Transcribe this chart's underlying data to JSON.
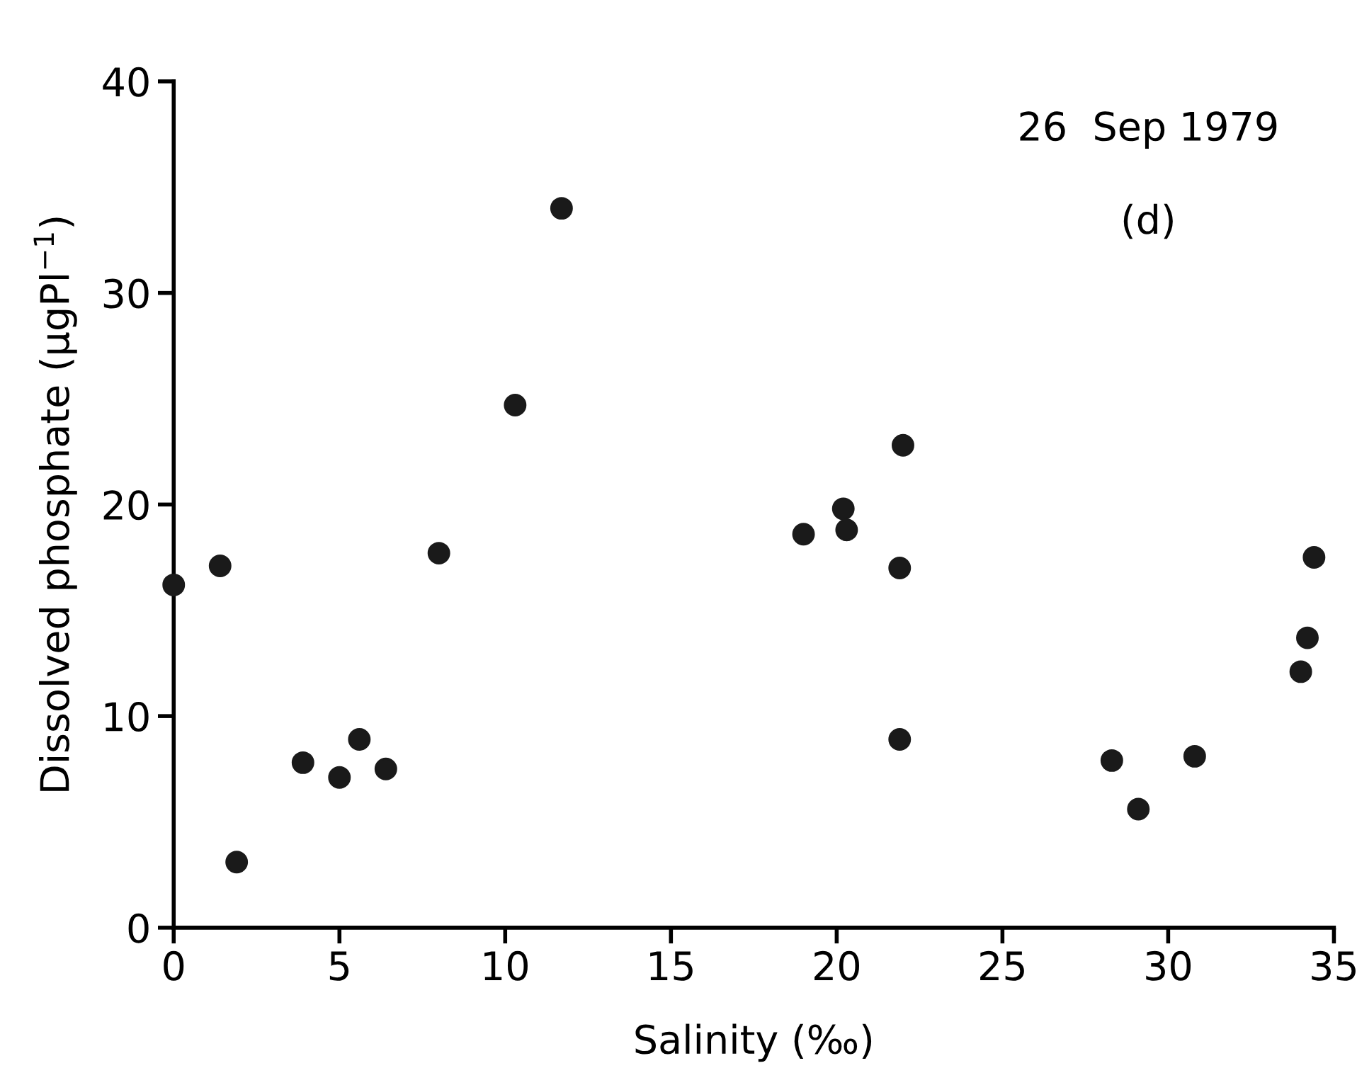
{
  "chart_data": {
    "type": "scatter",
    "xlabel": "Salinity (‰)",
    "ylabel": "Dissolved phosphate (μgPl$^{−1}$)",
    "annotations": [
      "26  Sep 1979",
      "(d)"
    ],
    "x": [
      0,
      1.4,
      1.9,
      3.9,
      5.0,
      5.6,
      6.4,
      8.0,
      10.3,
      11.7,
      19.0,
      20.2,
      20.3,
      22.0,
      21.9,
      21.9,
      28.3,
      29.1,
      30.8,
      34.4,
      34.2,
      34.0
    ],
    "values": [
      16.2,
      17.1,
      3.1,
      7.8,
      7.1,
      8.9,
      7.5,
      17.7,
      24.7,
      34.0,
      18.6,
      19.8,
      18.8,
      22.8,
      17.0,
      8.9,
      7.9,
      5.6,
      8.1,
      17.5,
      13.7,
      12.1
    ],
    "color": "#1a1a1a",
    "marker": "circle",
    "xlim": [
      0,
      35
    ],
    "ylim": [
      0,
      40
    ],
    "xticks": [
      0,
      5,
      10,
      15,
      20,
      25,
      30,
      35
    ],
    "yticks": [
      0,
      10,
      20,
      30,
      40
    ],
    "grid": false
  }
}
